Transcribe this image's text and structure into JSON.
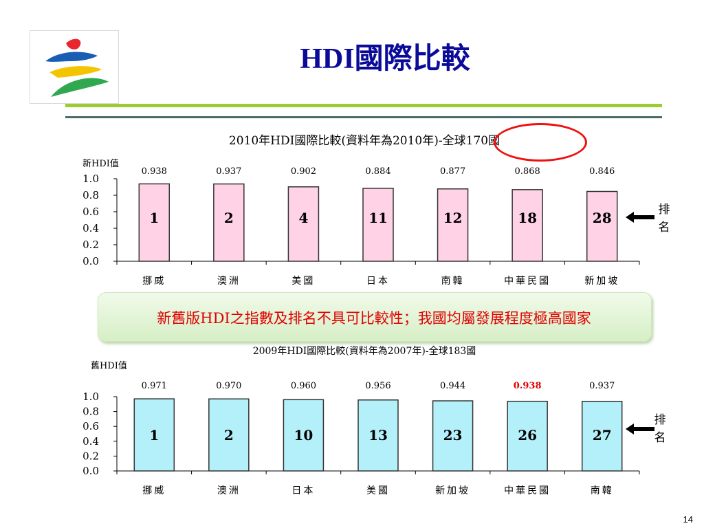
{
  "title": "HDI國際比較",
  "note": "新舊版HDI之指數及排名不具可比較性；我國均屬發展程度極高國家",
  "page_number": "14",
  "rank_label": "排名",
  "colors": {
    "title": "#0b0b9a",
    "new_bar": "#ffd2e6",
    "old_bar": "#b4f0fa",
    "highlight": "#e00000",
    "circle": "#e11111"
  },
  "chart_data": [
    {
      "type": "bar",
      "title": "2010年HDI國際比較(資料年為2010年)-全球170國",
      "ylabel": "新HDI值",
      "ylim": [
        0,
        1.0
      ],
      "yticks": [
        "0.0",
        "0.2",
        "0.4",
        "0.6",
        "0.8",
        "1.0"
      ],
      "categories": [
        "挪威",
        "澳洲",
        "美國",
        "日本",
        "南韓",
        "中華民國",
        "新加坡"
      ],
      "values": [
        0.938,
        0.937,
        0.902,
        0.884,
        0.877,
        0.868,
        0.846
      ],
      "value_labels": [
        "0.938",
        "0.937",
        "0.902",
        "0.884",
        "0.877",
        "0.868",
        "0.846"
      ],
      "ranks": [
        "1",
        "2",
        "4",
        "11",
        "12",
        "18",
        "28"
      ],
      "highlight_index": -1
    },
    {
      "type": "bar",
      "title": "2009年HDI國際比較(資料年為2007年)-全球183國",
      "ylabel": "舊HDI值",
      "ylim": [
        0,
        1.0
      ],
      "yticks": [
        "0.0",
        "0.2",
        "0.4",
        "0.6",
        "0.8",
        "1.0"
      ],
      "categories": [
        "挪威",
        "澳洲",
        "日本",
        "美國",
        "新加坡",
        "中華民國",
        "南韓"
      ],
      "values": [
        0.971,
        0.97,
        0.96,
        0.956,
        0.944,
        0.938,
        0.937
      ],
      "value_labels": [
        "0.971",
        "0.970",
        "0.960",
        "0.956",
        "0.944",
        "0.938",
        "0.937"
      ],
      "ranks": [
        "1",
        "2",
        "10",
        "13",
        "23",
        "26",
        "27"
      ],
      "highlight_index": 5
    }
  ]
}
